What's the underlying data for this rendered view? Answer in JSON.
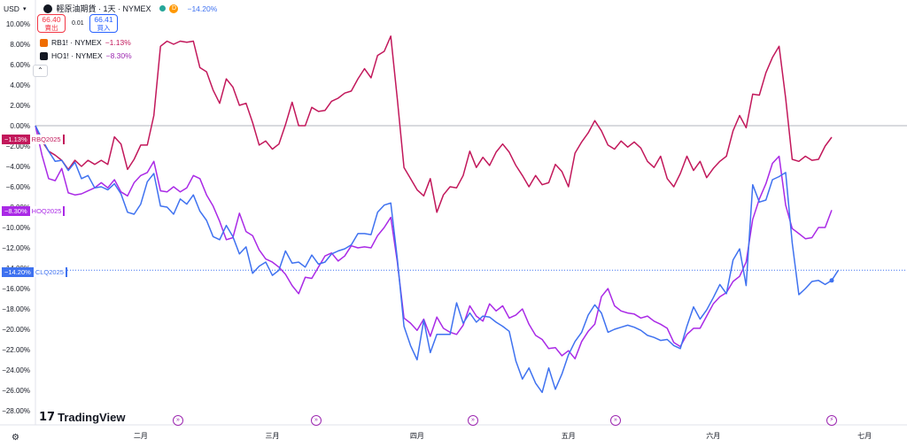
{
  "header": {
    "currency": "USD",
    "symbol_title": "輕原油期貨 · 1天 · NYMEX",
    "interval_badge": "D",
    "change_pct": "−14.20%",
    "sell_price": "66.40",
    "sell_label": "賣出",
    "spread": "0.01",
    "buy_price": "66.41",
    "buy_label": "買入"
  },
  "compare_legend": [
    {
      "symbol": "RB1! · NYMEX",
      "change": "−1.13%",
      "color": "#c2185b"
    },
    {
      "symbol": "HO1! · NYMEX",
      "change": "−8.30%",
      "color": "#9c27b0"
    }
  ],
  "collapse_icon": "chevron-up",
  "colors": {
    "rb": "#c2185b",
    "ho": "#aa2ae6",
    "cl": "#3f72f0",
    "baseline": "#b2b5be"
  },
  "price_badges": [
    {
      "pct": "−1.13%",
      "sym": "RBQ2025",
      "color": "#c2185b",
      "value": -1.13
    },
    {
      "pct": "−8.30%",
      "sym": "HOQ2025",
      "color": "#aa2ae6",
      "value": -8.3
    },
    {
      "pct": "−14.20%",
      "sym": "CLQ2025",
      "color": "#3f72f0",
      "value": -14.2
    }
  ],
  "branding": "TradingView",
  "settings_icon": "gear",
  "chart_data": {
    "type": "line",
    "ylim": [
      -28,
      10
    ],
    "yticks": [
      "10.00%",
      "8.00%",
      "6.00%",
      "4.00%",
      "2.00%",
      "0.00%",
      "−2.00%",
      "−4.00%",
      "−6.00%",
      "−8.00%",
      "−10.00%",
      "−12.00%",
      "−14.00%",
      "−16.00%",
      "−18.00%",
      "−20.00%",
      "−22.00%",
      "−24.00%",
      "−26.00%",
      "−28.00%"
    ],
    "ytick_values": [
      10,
      8,
      6,
      4,
      2,
      0,
      -2,
      -4,
      -6,
      -8,
      -10,
      -12,
      -14,
      -16,
      -18,
      -20,
      -22,
      -24,
      -26,
      -28
    ],
    "xtick_labels": [
      "二月",
      "三月",
      "四月",
      "五月",
      "六月",
      "七月"
    ],
    "xtick_index": [
      16,
      36,
      58,
      81,
      103,
      126
    ],
    "event_index": [
      22,
      46,
      69,
      91,
      125
    ],
    "series": [
      {
        "name": "RB1! · NYMEX",
        "color": "#c2185b",
        "values": [
          0,
          -1.5,
          -2.5,
          -2.9,
          -3.4,
          -4.3,
          -3.4,
          -4.0,
          -3.4,
          -3.8,
          -3.4,
          -3.8,
          -1.1,
          -1.8,
          -4.3,
          -3.3,
          -1.9,
          -1.9,
          1.0,
          7.8,
          8.3,
          8.0,
          8.3,
          8.2,
          8.3,
          5.7,
          5.3,
          3.5,
          2.2,
          4.6,
          3.8,
          2.0,
          2.2,
          0.3,
          -1.9,
          -1.5,
          -2.3,
          -1.8,
          0.1,
          2.3,
          0.0,
          0.0,
          1.8,
          1.4,
          1.5,
          2.4,
          2.7,
          3.2,
          3.4,
          4.6,
          5.6,
          4.7,
          6.9,
          7.3,
          8.8,
          2.6,
          -4.1,
          -5.2,
          -6.3,
          -6.9,
          -5.2,
          -8.5,
          -6.8,
          -6.0,
          -6.1,
          -4.9,
          -2.5,
          -4.1,
          -3.1,
          -3.9,
          -2.6,
          -1.8,
          -2.6,
          -3.9,
          -4.9,
          -6.0,
          -4.9,
          -5.8,
          -5.6,
          -3.8,
          -4.5,
          -6.0,
          -2.7,
          -1.6,
          -0.7,
          0.5,
          -0.5,
          -1.9,
          -2.3,
          -1.5,
          -2.1,
          -1.6,
          -2.2,
          -3.5,
          -4.1,
          -3.0,
          -5.2,
          -6.0,
          -4.7,
          -3.0,
          -4.4,
          -3.5,
          -5.1,
          -4.2,
          -3.5,
          -3.0,
          -0.5,
          1.0,
          -0.2,
          3.1,
          3.0,
          5.2,
          6.7,
          7.8,
          2.7,
          -3.3,
          -3.5,
          -3.0,
          -3.4,
          -3.3,
          -2.0,
          -1.13
        ]
      },
      {
        "name": "HO1! · NYMEX",
        "color": "#aa2ae6",
        "values": [
          0,
          -2.9,
          -5.2,
          -5.4,
          -4.2,
          -6.6,
          -6.8,
          -6.7,
          -6.4,
          -6.1,
          -5.6,
          -6.1,
          -5.3,
          -6.5,
          -6.9,
          -5.6,
          -4.9,
          -4.6,
          -3.5,
          -6.4,
          -6.5,
          -6.0,
          -6.5,
          -6.1,
          -4.9,
          -5.2,
          -6.8,
          -7.9,
          -9.4,
          -11.2,
          -11.0,
          -8.6,
          -10.4,
          -10.8,
          -12.2,
          -13.1,
          -13.4,
          -13.9,
          -14.6,
          -15.7,
          -16.5,
          -14.9,
          -15.0,
          -13.9,
          -12.8,
          -12.5,
          -13.3,
          -12.8,
          -11.8,
          -12.0,
          -11.9,
          -12.0,
          -10.8,
          -10.0,
          -9.0,
          -13.4,
          -18.9,
          -19.4,
          -20.1,
          -19.0,
          -20.7,
          -18.8,
          -19.9,
          -20.3,
          -20.5,
          -19.6,
          -17.7,
          -18.7,
          -19.2,
          -17.5,
          -18.2,
          -17.7,
          -18.9,
          -18.6,
          -18.0,
          -19.5,
          -20.6,
          -21.0,
          -21.9,
          -21.8,
          -22.6,
          -22.1,
          -22.9,
          -21.2,
          -20.2,
          -19.5,
          -16.8,
          -16.0,
          -17.7,
          -18.2,
          -18.4,
          -18.5,
          -18.9,
          -18.7,
          -19.2,
          -19.5,
          -19.9,
          -21.3,
          -21.7,
          -20.5,
          -19.9,
          -19.9,
          -18.7,
          -17.5,
          -16.8,
          -16.4,
          -15.3,
          -14.8,
          -13.4,
          -9.2,
          -7.2,
          -5.7,
          -3.7,
          -3.0,
          -7.8,
          -10.1,
          -10.6,
          -11.1,
          -11.0,
          -10.0,
          -10.0,
          -8.3
        ]
      },
      {
        "name": "CLQ2025",
        "color": "#3f72f0",
        "values": [
          0,
          -1.3,
          -2.5,
          -3.5,
          -3.4,
          -4.4,
          -3.6,
          -5.2,
          -4.9,
          -6.1,
          -6.0,
          -6.3,
          -5.7,
          -6.7,
          -8.5,
          -8.7,
          -7.7,
          -5.5,
          -4.7,
          -7.9,
          -8.0,
          -8.7,
          -7.2,
          -7.7,
          -6.8,
          -8.4,
          -9.3,
          -10.9,
          -11.2,
          -9.8,
          -10.9,
          -12.6,
          -11.9,
          -14.5,
          -13.8,
          -13.4,
          -14.7,
          -14.2,
          -12.3,
          -13.5,
          -13.4,
          -13.9,
          -12.7,
          -13.6,
          -13.4,
          -12.6,
          -12.3,
          -12.1,
          -11.7,
          -10.6,
          -10.6,
          -10.7,
          -8.5,
          -7.8,
          -7.6,
          -13.1,
          -19.7,
          -21.6,
          -23.0,
          -19.1,
          -22.3,
          -20.5,
          -20.5,
          -20.5,
          -17.4,
          -19.4,
          -18.4,
          -19.3,
          -18.7,
          -18.8,
          -19.3,
          -19.7,
          -20.2,
          -23.1,
          -24.9,
          -23.8,
          -25.3,
          -26.2,
          -23.8,
          -25.9,
          -24.4,
          -22.5,
          -21.2,
          -20.3,
          -18.6,
          -17.6,
          -18.4,
          -20.3,
          -20.0,
          -19.8,
          -19.6,
          -19.8,
          -20.1,
          -20.6,
          -20.8,
          -21.1,
          -21.0,
          -21.6,
          -21.9,
          -19.7,
          -17.8,
          -19.0,
          -18.1,
          -16.9,
          -15.6,
          -16.5,
          -13.2,
          -12.1,
          -15.7,
          -5.8,
          -7.5,
          -7.3,
          -5.3,
          -5.0,
          -4.6,
          -11.5,
          -16.6,
          -16.0,
          -15.3,
          -15.2,
          -15.6,
          -15.2,
          -14.2
        ]
      }
    ]
  }
}
